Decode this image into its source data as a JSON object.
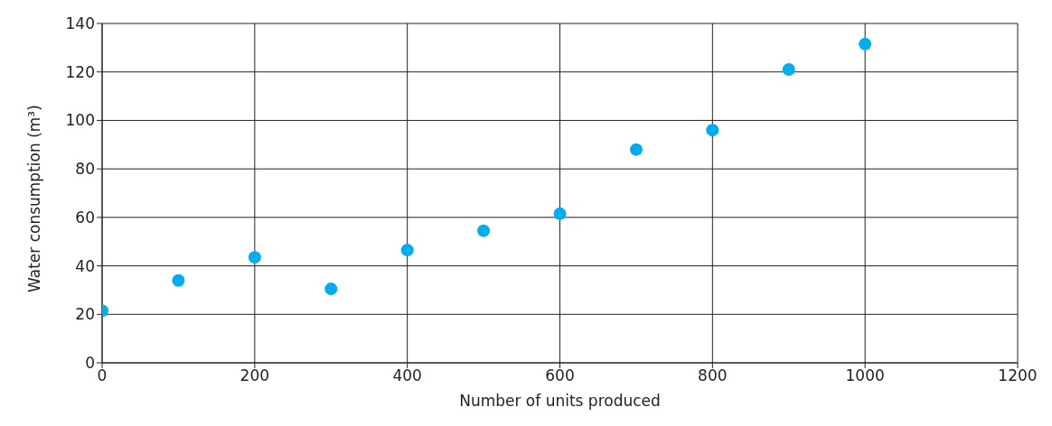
{
  "chart_data": {
    "type": "scatter",
    "xlabel": "Number of units produced",
    "ylabel": "Water consumption (m³)",
    "x": [
      0,
      100,
      200,
      300,
      400,
      500,
      600,
      700,
      800,
      900,
      1000
    ],
    "series": [
      {
        "color": "#00aeef",
        "values": [
          21.5,
          34,
          43.5,
          30.5,
          46.5,
          54.5,
          61.5,
          88,
          96,
          121,
          131.5
        ]
      }
    ],
    "xlim": [
      0,
      1200
    ],
    "xticks": [
      0,
      200,
      400,
      600,
      800,
      1000,
      1200
    ],
    "ylim": [
      0,
      140
    ],
    "yticks": [
      0,
      20,
      40,
      60,
      80,
      100,
      120,
      140
    ],
    "grid": true,
    "marker": "circle",
    "legend": false
  }
}
